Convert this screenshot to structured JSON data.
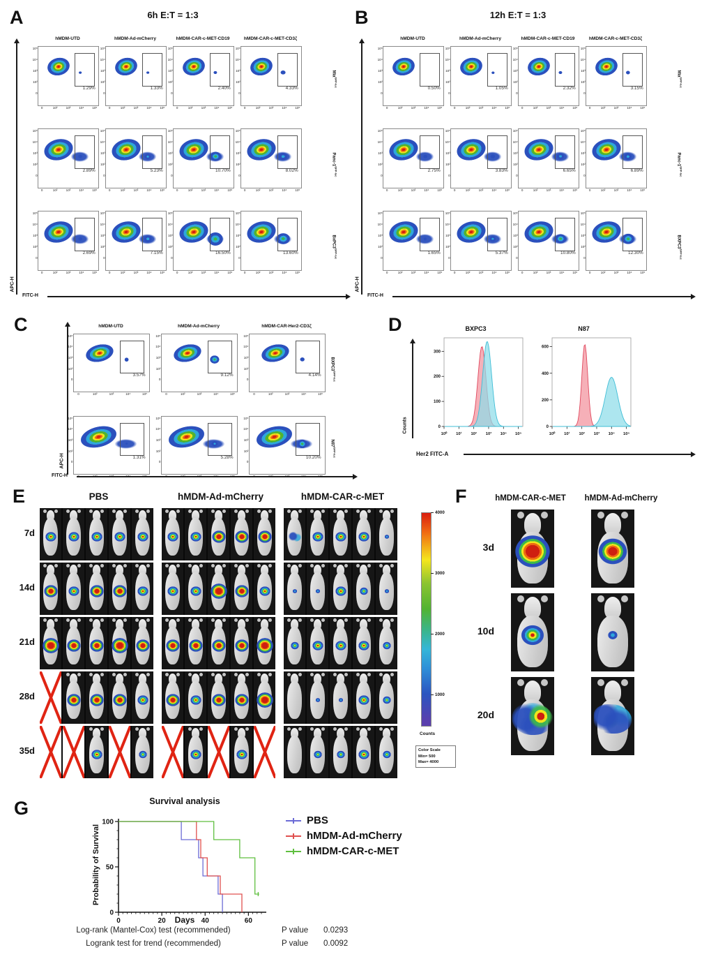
{
  "flow_axis": {
    "y_label": "APC-H",
    "x_label": "FITC-H",
    "y_ticks": [
      "10⁵",
      "10⁴",
      "10³",
      "10²",
      "0"
    ],
    "x_ticks": [
      "0",
      "10²",
      "10³",
      "10⁴",
      "10⁵"
    ]
  },
  "panel_a": {
    "letter": "A",
    "title": "6h E:T = 1:3",
    "columns": [
      "hMDM-UTD",
      "hMDM-Ad-mCherry",
      "hMDM-CAR-c-MET-CD19",
      "hMDM-CAR-c-MET-CD3ζ"
    ],
    "rows": [
      {
        "label": "Mia",
        "sup": "GFP-luc",
        "blob": "compact",
        "percentages": [
          "1.29%",
          "1.33%",
          "2.40%",
          "4.33%"
        ]
      },
      {
        "label": "Panc-1",
        "sup": "GFP-luc",
        "blob": "wide",
        "percentages": [
          "2.89%",
          "5.23%",
          "10.70%",
          "8.02%"
        ]
      },
      {
        "label": "BxPC3",
        "sup": "GFP-luc",
        "blob": "wide",
        "percentages": [
          "2.69%",
          "7.15%",
          "16.50%",
          "13.60%"
        ]
      }
    ]
  },
  "panel_b": {
    "letter": "B",
    "title": "12h E:T = 1:3",
    "columns": [
      "hMDM-UTD",
      "hMDM-Ad-mCherry",
      "hMDM-CAR-c-MET-CD19",
      "hMDM-CAR-c-MET-CD3ζ"
    ],
    "rows": [
      {
        "label": "Mia",
        "sup": "GFP-luc",
        "blob": "compact",
        "percentages": [
          "0.50%",
          "1.05%",
          "2.32%",
          "3.15%"
        ]
      },
      {
        "label": "Panc-1",
        "sup": "GFP-luc",
        "blob": "wide",
        "percentages": [
          "2.75%",
          "3.83%",
          "6.65%",
          "6.89%"
        ]
      },
      {
        "label": "BXPC3",
        "sup": "GFP-luc",
        "blob": "wide",
        "percentages": [
          "1.65%",
          "5.37%",
          "10.80%",
          "12.30%"
        ]
      }
    ]
  },
  "panel_c": {
    "letter": "C",
    "columns": [
      "hMDM-UTD",
      "hMDM-Ad-mCherry",
      "hMDM-CAR-Her2-CD3ζ"
    ],
    "rows": [
      {
        "label": "BXPC3",
        "sup": "GFP-luc",
        "blob": "compact",
        "percentages": [
          "3.57%",
          "9.12%",
          "4.14%"
        ]
      },
      {
        "label": "N87",
        "sup": "GFP-luc",
        "blob": "wide",
        "percentages": [
          "1.31%",
          "5.28%",
          "10.20%"
        ]
      }
    ]
  },
  "panel_d": {
    "letter": "D",
    "y_label": "Counts",
    "x_label": "Her2 FITC-A",
    "x_ticks": [
      "10⁰",
      "10¹",
      "10²",
      "10³",
      "10⁴",
      "10⁵"
    ]
  },
  "panel_e": {
    "letter": "E",
    "groups": [
      "PBS",
      "hMDM-Ad-mCherry",
      "hMDM-CAR-c-MET"
    ],
    "timepoints": [
      "7d",
      "14d",
      "21d",
      "28d",
      "35d"
    ],
    "grid": [
      [
        [
          "md",
          "md",
          "md",
          "md",
          "md"
        ],
        [
          "md",
          "md",
          "lg",
          "lg",
          "lg"
        ],
        [
          "sct_s",
          "md",
          "md",
          "md",
          "dot"
        ]
      ],
      [
        [
          "lg",
          "md",
          "lg",
          "lg",
          "md"
        ],
        [
          "md",
          "md",
          "xl",
          "lg",
          "md"
        ],
        [
          "dot",
          "dot",
          "md",
          "sm",
          "dot"
        ]
      ],
      [
        [
          "xl",
          "lg",
          "lg",
          "xl",
          "lg"
        ],
        [
          "lg",
          "lg",
          "lg",
          "lg",
          "xl"
        ],
        [
          "sm",
          "md",
          "md",
          "md",
          "sm"
        ]
      ],
      [
        [
          "x",
          "lg",
          "lg",
          "lg",
          "md"
        ],
        [
          "lg",
          "md",
          "lg",
          "lg",
          "xl"
        ],
        [
          "none",
          "dot",
          "dot",
          "md",
          "sm"
        ]
      ],
      [
        [
          "x",
          "x",
          "md",
          "x",
          "sm"
        ],
        [
          "x",
          "md",
          "x",
          "md",
          "x"
        ],
        [
          "none",
          "sm",
          "sm",
          "md",
          "sm"
        ]
      ]
    ],
    "colorbar": {
      "ticks": [
        "4000",
        "3000",
        "2000",
        "1000"
      ],
      "label": "Counts",
      "box_lines": [
        "Color Scale",
        "Min= 500",
        "Max= 4000"
      ]
    }
  },
  "panel_f": {
    "letter": "F",
    "columns": [
      "hMDM-CAR-c-MET",
      "hMDM-Ad-mCherry"
    ],
    "timepoints": [
      "3d",
      "10d",
      "20d"
    ],
    "grid": [
      [
        "xl",
        "lg"
      ],
      [
        "md",
        "dot"
      ],
      [
        "sct_r",
        "sct"
      ]
    ]
  },
  "panel_g": {
    "letter": "G",
    "title": "Survival analysis",
    "y_label": "Probability of Survival",
    "x_label": "Days",
    "legend": [
      {
        "label": "PBS",
        "color": "#6b6bd6"
      },
      {
        "label": "hMDM-Ad-mCherry",
        "color": "#e0504f"
      },
      {
        "label": "hMDM-CAR-c-MET",
        "color": "#5fbf3f"
      }
    ],
    "stats": [
      {
        "test": "Log-rank (Mantel-Cox) test (recommended)",
        "p_label": "P value",
        "p": "0.0293"
      },
      {
        "test": "Logrank test for trend (recommended)",
        "p_label": "P value",
        "p": "0.0092"
      }
    ]
  },
  "chart_data": [
    {
      "type": "area",
      "panel": "D",
      "title": "BXPC3",
      "xlabel": "Her2 FITC-A",
      "ylabel": "Counts",
      "x_scale": "log10",
      "xlim_log": [
        0,
        5.3
      ],
      "ylim": [
        0,
        340
      ],
      "y_ticks": [
        300,
        200,
        100,
        0
      ],
      "series": [
        {
          "name": "isotype-control",
          "fill": "#f2919c",
          "line": "#e0485e",
          "peak_log": 2.55,
          "peak_height": 320,
          "sigma_log": 0.27
        },
        {
          "name": "Her2-stain",
          "fill": "#8edce9",
          "line": "#3fbdd6",
          "peak_log": 2.9,
          "peak_height": 340,
          "sigma_log": 0.3
        }
      ]
    },
    {
      "type": "area",
      "panel": "D",
      "title": "N87",
      "xlabel": "Her2 FITC-A",
      "ylabel": "Counts",
      "x_scale": "log10",
      "xlim_log": [
        0,
        5.3
      ],
      "ylim": [
        0,
        640
      ],
      "y_ticks": [
        600,
        400,
        200,
        0
      ],
      "series": [
        {
          "name": "isotype-control",
          "fill": "#f2919c",
          "line": "#e0485e",
          "peak_log": 2.2,
          "peak_height": 620,
          "sigma_log": 0.2
        },
        {
          "name": "Her2-stain",
          "fill": "#8edce9",
          "line": "#3fbdd6",
          "peak_log": 4.0,
          "peak_height": 370,
          "sigma_log": 0.42
        }
      ]
    },
    {
      "type": "line",
      "panel": "G",
      "title": "Survival analysis",
      "xlabel": "Days",
      "ylabel": "Probability of Survival",
      "xlim": [
        0,
        66
      ],
      "ylim": [
        0,
        100
      ],
      "x_ticks": [
        0,
        20,
        40,
        60
      ],
      "y_ticks": [
        100,
        50,
        0
      ],
      "legend_position": "right",
      "series": [
        {
          "name": "PBS",
          "color": "#6b6bd6",
          "points": [
            [
              0,
              100
            ],
            [
              29,
              100
            ],
            [
              29,
              80
            ],
            [
              37,
              80
            ],
            [
              37,
              60
            ],
            [
              39,
              60
            ],
            [
              39,
              40
            ],
            [
              46,
              40
            ],
            [
              46,
              20
            ],
            [
              48,
              20
            ],
            [
              48,
              0
            ]
          ]
        },
        {
          "name": "hMDM-Ad-mCherry",
          "color": "#e0504f",
          "points": [
            [
              0,
              100
            ],
            [
              36,
              100
            ],
            [
              36,
              80
            ],
            [
              38,
              80
            ],
            [
              38,
              60
            ],
            [
              41,
              60
            ],
            [
              41,
              40
            ],
            [
              47,
              40
            ],
            [
              47,
              20
            ],
            [
              57,
              20
            ],
            [
              57,
              0
            ]
          ]
        },
        {
          "name": "hMDM-CAR-c-MET",
          "color": "#5fbf3f",
          "points": [
            [
              0,
              100
            ],
            [
              44,
              100
            ],
            [
              44,
              80
            ],
            [
              56,
              80
            ],
            [
              56,
              60
            ],
            [
              63,
              60
            ],
            [
              63,
              20
            ],
            [
              65,
              20
            ]
          ],
          "censor": [
            [
              64.5,
              20
            ]
          ]
        }
      ]
    }
  ]
}
